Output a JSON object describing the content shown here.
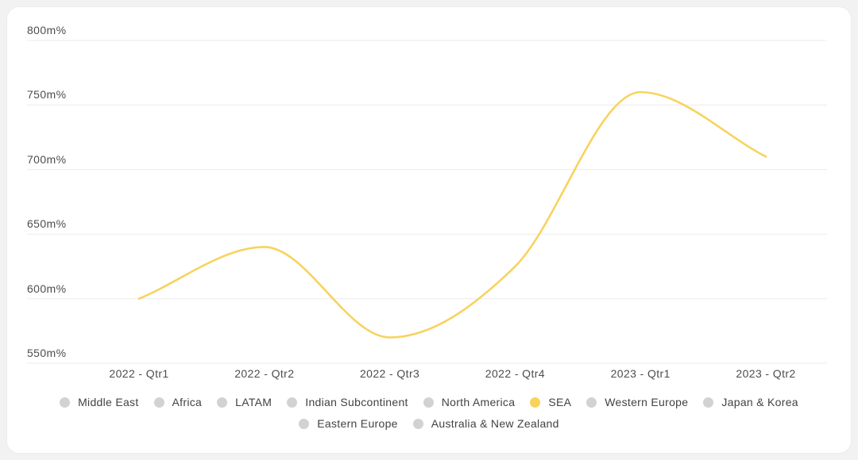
{
  "chart_data": {
    "type": "line",
    "title": "",
    "xlabel": "",
    "ylabel": "",
    "categories": [
      "2022 - Qtr1",
      "2022 - Qtr2",
      "2022 - Qtr3",
      "2022 - Qtr4",
      "2023 - Qtr1",
      "2023 - Qtr2"
    ],
    "y_ticks": [
      "800m%",
      "750m%",
      "700m%",
      "650m%",
      "600m%",
      "550m%"
    ],
    "y_tick_values": [
      800,
      750,
      700,
      650,
      600,
      550
    ],
    "ylim": [
      550,
      800
    ],
    "y_unit": "m%",
    "grid": "horizontal",
    "legend_position": "bottom",
    "series": [
      {
        "name": "SEA",
        "values": [
          600,
          640,
          570,
          625,
          760,
          710
        ],
        "color": "#F7D35E",
        "active": true
      }
    ]
  },
  "legend": {
    "colors": {
      "active": "#F7D35E",
      "inactive": "#D2D2D2"
    },
    "rows": [
      [
        {
          "label": "Middle East",
          "active": false
        },
        {
          "label": "Africa",
          "active": false
        },
        {
          "label": "LATAM",
          "active": false
        },
        {
          "label": "Indian Subcontinent",
          "active": false
        },
        {
          "label": "North America",
          "active": false
        },
        {
          "label": "SEA",
          "active": true
        },
        {
          "label": "Western Europe",
          "active": false
        },
        {
          "label": "Japan & Korea",
          "active": false
        }
      ],
      [
        {
          "label": "Eastern Europe",
          "active": false
        },
        {
          "label": "Australia & New Zealand",
          "active": false
        }
      ]
    ]
  },
  "colors": {
    "accent": "#F7D35E",
    "inactive_dot": "#D2D2D2",
    "gridline": "#EBEBEB",
    "axis_text": "#4D4D4D",
    "legend_text": "#424242",
    "card_bg": "#FFFFFF",
    "page_bg": "#F2F2F2"
  }
}
